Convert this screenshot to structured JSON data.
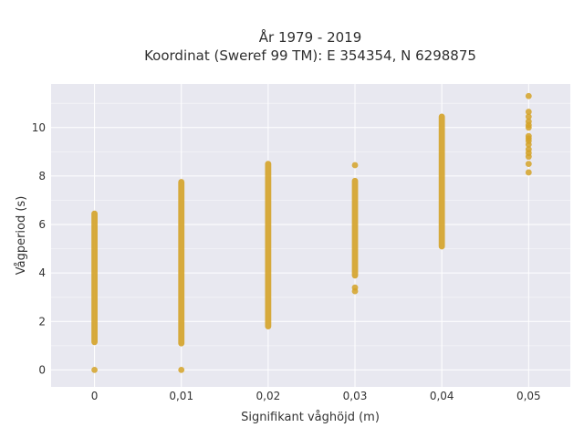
{
  "chart_data": {
    "type": "scatter",
    "title": [
      "År 1979 - 2019",
      "Koordinat (Sweref 99 TM): E 354354, N 6298875"
    ],
    "xlabel": "Signifikant våghöjd (m)",
    "ylabel": "Vågperiod (s)",
    "xlim": [
      -0.005,
      0.0548
    ],
    "ylim": [
      -0.7,
      11.8
    ],
    "x_ticks": [
      0,
      0.01,
      0.02,
      0.03,
      0.04,
      0.05
    ],
    "x_tick_labels": [
      "0",
      "0,01",
      "0,02",
      "0,03",
      "0,04",
      "0,05"
    ],
    "y_ticks": [
      0,
      2,
      4,
      6,
      8,
      10
    ],
    "y_tick_labels": [
      "0",
      "2",
      "4",
      "6",
      "8",
      "10"
    ],
    "grid": true,
    "point_color": "#d4a227",
    "plot_background": "#e8e8f0",
    "series": [
      {
        "columns": [
          {
            "x": 0,
            "ranges": [
              [
                1.15,
                6.45
              ]
            ],
            "points": [
              0.0
            ]
          },
          {
            "x": 0.01,
            "ranges": [
              [
                1.1,
                7.75
              ]
            ],
            "points": [
              0.0
            ]
          },
          {
            "x": 0.02,
            "ranges": [
              [
                1.8,
                8.5
              ]
            ],
            "points": []
          },
          {
            "x": 0.03,
            "ranges": [
              [
                3.9,
                7.8
              ]
            ],
            "points": [
              3.25,
              3.4,
              8.45
            ]
          },
          {
            "x": 0.04,
            "ranges": [
              [
                5.1,
                10.45
              ]
            ],
            "points": []
          },
          {
            "x": 0.05,
            "ranges": [],
            "points": [
              8.15,
              8.5,
              8.8,
              8.95,
              9.1,
              9.3,
              9.45,
              9.55,
              9.65,
              10.0,
              10.1,
              10.25,
              10.45,
              10.65,
              11.3
            ]
          }
        ]
      }
    ]
  }
}
